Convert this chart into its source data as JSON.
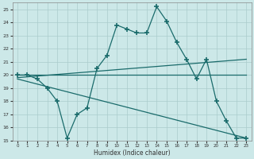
{
  "xlabel": "Humidex (Indice chaleur)",
  "background_color": "#cce8e8",
  "grid_color": "#aacccc",
  "line_color": "#1a6b6b",
  "xlim": [
    -0.5,
    23.5
  ],
  "ylim": [
    15,
    25.5
  ],
  "yticks": [
    15,
    16,
    17,
    18,
    19,
    20,
    21,
    22,
    23,
    24,
    25
  ],
  "xticks": [
    0,
    1,
    2,
    3,
    4,
    5,
    6,
    7,
    8,
    9,
    10,
    11,
    12,
    13,
    14,
    15,
    16,
    17,
    18,
    19,
    20,
    21,
    22,
    23
  ],
  "series1_x": [
    0,
    1,
    2,
    3,
    4,
    5,
    6,
    7,
    8,
    9,
    10,
    11,
    12,
    13,
    14,
    15,
    16,
    17,
    18,
    19,
    20,
    21,
    22,
    23
  ],
  "series1_y": [
    20.0,
    20.0,
    19.7,
    19.0,
    18.0,
    15.2,
    17.0,
    17.5,
    20.5,
    21.5,
    23.8,
    23.5,
    23.2,
    23.2,
    25.2,
    24.1,
    22.5,
    21.2,
    19.7,
    21.2,
    18.0,
    16.5,
    15.2,
    15.2
  ],
  "series2_x": [
    0,
    1,
    2,
    3,
    4,
    5,
    6,
    7,
    8,
    9,
    10,
    11,
    12,
    13,
    14,
    15,
    16,
    17,
    18,
    19,
    20,
    21,
    22,
    23
  ],
  "series2_y": [
    20.0,
    20.0,
    20.0,
    20.0,
    20.0,
    20.0,
    20.0,
    20.0,
    20.0,
    20.0,
    20.0,
    20.0,
    20.0,
    20.0,
    20.0,
    20.0,
    20.0,
    20.0,
    20.0,
    20.0,
    20.0,
    20.0,
    20.0,
    20.0
  ],
  "series3_x": [
    0,
    23
  ],
  "series3_y": [
    19.8,
    21.2
  ],
  "series4_x": [
    0,
    23
  ],
  "series4_y": [
    19.7,
    15.2
  ],
  "figsize": [
    3.2,
    2.0
  ],
  "dpi": 100
}
